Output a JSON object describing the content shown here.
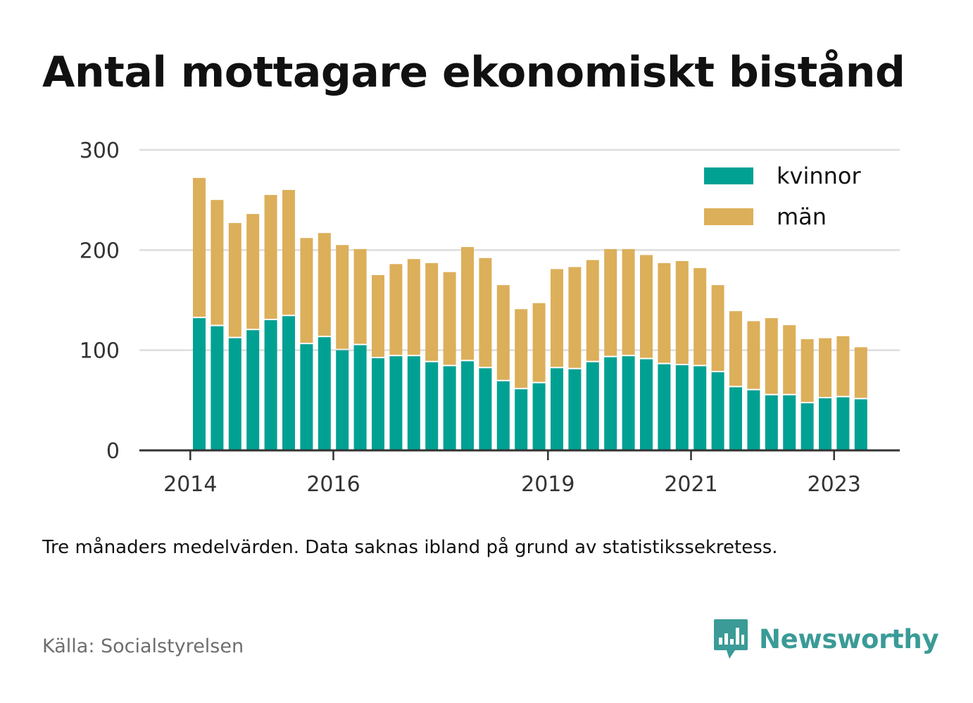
{
  "colors": {
    "kvinnor": "#00a193",
    "man": "#dcaf5a",
    "grid": "#dddddd",
    "axis": "#333333",
    "brand": "#3a9b97"
  },
  "chart_data": {
    "type": "bar",
    "stacked": true,
    "title": "Antal mottagare ekonomiskt bistånd",
    "ylim": [
      0,
      300
    ],
    "yticks": [
      0,
      100,
      200,
      300
    ],
    "grid": true,
    "legend_position": "top-right",
    "x_tick_labels": [
      {
        "label": "2014",
        "at_index": -1
      },
      {
        "label": "2016",
        "at_index": 7
      },
      {
        "label": "2019",
        "at_index": 19
      },
      {
        "label": "2021",
        "at_index": 27
      },
      {
        "label": "2023",
        "at_index": 35
      }
    ],
    "series": [
      {
        "name": "kvinnor",
        "values": [
          132,
          124,
          112,
          120,
          130,
          134,
          106,
          113,
          100,
          105,
          92,
          94,
          94,
          88,
          84,
          89,
          82,
          69,
          61,
          67,
          82,
          81,
          88,
          93,
          94,
          91,
          86,
          85,
          84,
          78,
          63,
          60,
          55,
          55,
          47,
          52,
          53,
          51
        ]
      },
      {
        "name": "män",
        "values": [
          140,
          126,
          115,
          116,
          125,
          126,
          106,
          104,
          105,
          96,
          83,
          92,
          97,
          99,
          94,
          114,
          110,
          96,
          80,
          80,
          99,
          102,
          102,
          108,
          107,
          104,
          101,
          104,
          98,
          87,
          76,
          69,
          77,
          70,
          64,
          60,
          61,
          52
        ]
      }
    ]
  },
  "note": "Tre månaders medelvärden. Data saknas ibland på grund av statistikssekretess.",
  "source": "Källa: Socialstyrelsen",
  "brand": {
    "name": "Newsworthy",
    "icon": "newsworthy-logo-icon"
  }
}
